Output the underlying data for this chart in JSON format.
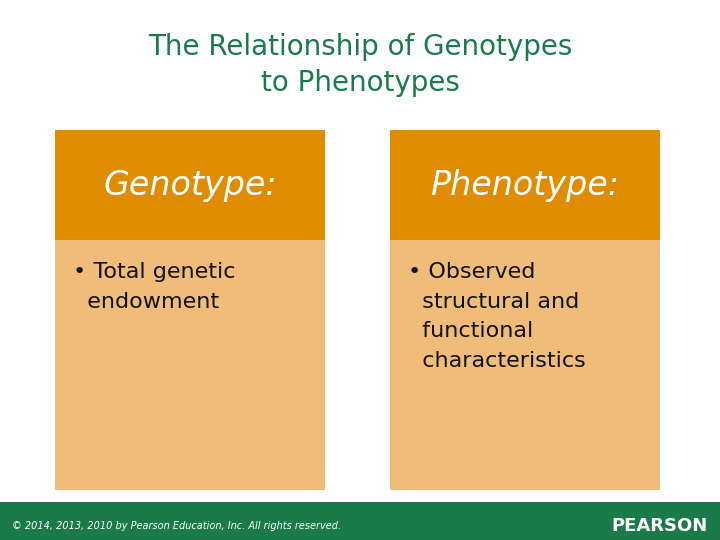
{
  "title": "The Relationship of Genotypes\nto Phenotypes",
  "title_color": "#1a7a4a",
  "title_fontsize": 20,
  "background_color": "#ffffff",
  "footer_bg_color": "#1a7a4a",
  "footer_text": "© 2014, 2013, 2010 by Pearson Education, Inc. All rights reserved.",
  "footer_brand": "PEARSON",
  "footer_text_color": "#ffffff",
  "box_header_color": "#e08c00",
  "box_body_color": "#f0bc7a",
  "left_header": "Genotype:",
  "left_body": "• Total genetic\n  endowment",
  "right_header": "Phenotype:",
  "right_body": "• Observed\n  structural and\n  functional\n  characteristics",
  "header_text_color": "#ffffff",
  "body_text_color": "#111111",
  "header_fontsize": 24,
  "body_fontsize": 16,
  "footer_fontsize": 7,
  "footer_brand_fontsize": 13
}
